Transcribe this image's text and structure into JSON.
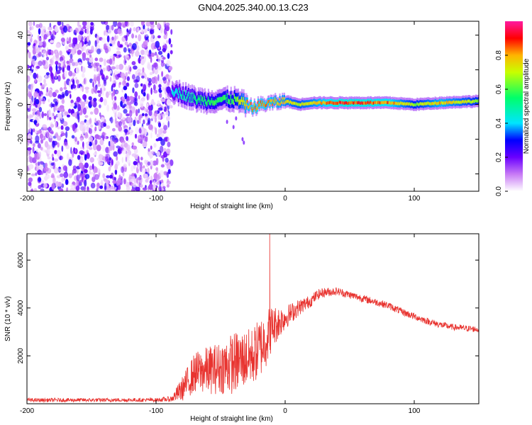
{
  "title": "GN04.2025.340.00.13.C23",
  "chart_data": [
    {
      "type": "heatmap",
      "name": "spectrogram",
      "xlabel": "Height of straight line (km)",
      "ylabel": "Frequency (Hz)",
      "xlim": [
        -200,
        150
      ],
      "ylim": [
        -50,
        48
      ],
      "xticks": [
        "-200",
        "-100",
        "0",
        "100"
      ],
      "xtick_values": [
        -200,
        -100,
        0,
        100
      ],
      "yticks": [
        "40",
        "20",
        "0",
        "-20",
        "-40"
      ],
      "ytick_values": [
        40,
        20,
        0,
        -20,
        -40
      ],
      "colorbar": {
        "label": "Normalized spectral amplitude",
        "range": [
          0.0,
          1.0
        ],
        "ticks": [
          "0.0",
          "0.2",
          "0.4",
          "0.6",
          "0.8"
        ],
        "tick_values": [
          0.0,
          0.2,
          0.4,
          0.6,
          0.8
        ]
      },
      "noise_region_x": [
        -200,
        -88
      ],
      "signal_trace": {
        "x": [
          -88,
          -80,
          -70,
          -60,
          -50,
          -40,
          -30,
          -25,
          -20,
          -10,
          0,
          10,
          20,
          40,
          60,
          80,
          100,
          120,
          150
        ],
        "freq": [
          8,
          6,
          3,
          2,
          3,
          3,
          0,
          -2,
          0,
          1,
          2,
          0,
          1,
          1,
          1,
          1,
          0,
          1,
          2
        ],
        "level": [
          0.45,
          0.5,
          0.55,
          0.6,
          0.6,
          0.65,
          0.85,
          0.9,
          0.9,
          0.85,
          0.8,
          0.75,
          0.8,
          0.95,
          0.95,
          0.9,
          0.7,
          0.85,
          0.7
        ]
      }
    },
    {
      "type": "line",
      "name": "snr",
      "xlabel": "Height of straight line (km)",
      "ylabel": "SNR (10 * v/v)",
      "xlim": [
        -200,
        150
      ],
      "ylim": [
        0,
        7100
      ],
      "xticks": [
        "-200",
        "-100",
        "0",
        "100"
      ],
      "xtick_values": [
        -200,
        -100,
        0,
        100
      ],
      "yticks": [
        "2000",
        "4000",
        "6000"
      ],
      "ytick_values": [
        2000,
        4000,
        6000
      ],
      "color": "#e8332f",
      "envelope": {
        "x": [
          -200,
          -100,
          -88,
          -80,
          -70,
          -60,
          -50,
          -40,
          -30,
          -25,
          -20,
          -15,
          -12,
          -10,
          -5,
          0,
          10,
          20,
          25,
          30,
          40,
          50,
          60,
          70,
          80,
          90,
          100,
          110,
          120,
          130,
          140,
          150
        ],
        "y": [
          150,
          160,
          200,
          600,
          1300,
          1400,
          1500,
          1700,
          1900,
          2000,
          2300,
          2700,
          3000,
          3200,
          3400,
          3600,
          4000,
          4300,
          4550,
          4650,
          4700,
          4550,
          4400,
          4250,
          4100,
          3850,
          3650,
          3450,
          3300,
          3200,
          3150,
          3100
        ],
        "amp": [
          80,
          80,
          120,
          500,
          850,
          1000,
          1100,
          1300,
          1200,
          1200,
          1300,
          1200,
          1100,
          900,
          700,
          500,
          350,
          250,
          220,
          200,
          170,
          160,
          160,
          150,
          150,
          150,
          150,
          140,
          140,
          130,
          130,
          130
        ]
      },
      "peak": {
        "x": -12,
        "y": 7100
      }
    }
  ]
}
